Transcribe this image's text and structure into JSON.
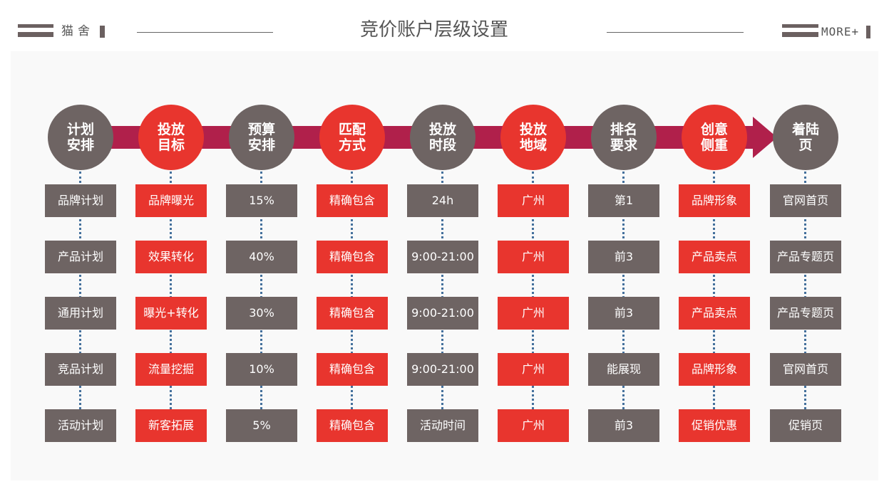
{
  "header": {
    "logo_text": "猫舍",
    "title": "竞价账户层级设置",
    "more_label": "MORE+"
  },
  "colors": {
    "header_accent": "#6b6060",
    "arrow": "#b0204b",
    "connector": "#44709c"
  },
  "stages": [
    {
      "title": [
        "计划",
        "安排"
      ],
      "color": "#6e6463",
      "items": [
        "品牌计划",
        "产品计划",
        "通用计划",
        "竞品计划",
        "活动计划"
      ]
    },
    {
      "title": [
        "投放",
        "目标"
      ],
      "color": "#e8352e",
      "items": [
        "品牌曝光",
        "效果转化",
        "曝光+转化",
        "流量挖掘",
        "新客拓展"
      ]
    },
    {
      "title": [
        "预算",
        "安排"
      ],
      "color": "#6e6463",
      "items": [
        "15%",
        "40%",
        "30%",
        "10%",
        "5%"
      ]
    },
    {
      "title": [
        "匹配",
        "方式"
      ],
      "color": "#e8352e",
      "items": [
        "精确包含",
        "精确包含",
        "精确包含",
        "精确包含",
        "精确包含"
      ]
    },
    {
      "title": [
        "投放",
        "时段"
      ],
      "color": "#6e6463",
      "items": [
        "24h",
        "9:00-21:00",
        "9:00-21:00",
        "9:00-21:00",
        "活动时间"
      ]
    },
    {
      "title": [
        "投放",
        "地域"
      ],
      "color": "#e8352e",
      "items": [
        "广州",
        "广州",
        "广州",
        "广州",
        "广州"
      ]
    },
    {
      "title": [
        "排名",
        "要求"
      ],
      "color": "#6e6463",
      "items": [
        "第1",
        "前3",
        "前3",
        "能展现",
        "前3"
      ]
    },
    {
      "title": [
        "创意",
        "侧重"
      ],
      "color": "#e8352e",
      "items": [
        "品牌形象",
        "产品卖点",
        "产品卖点",
        "品牌形象",
        "促销优惠"
      ]
    },
    {
      "title": [
        "着陆",
        "页"
      ],
      "color": "#6e6463",
      "items": [
        "官网首页",
        "产品专题页",
        "产品专题页",
        "官网首页",
        "促销页"
      ]
    }
  ]
}
